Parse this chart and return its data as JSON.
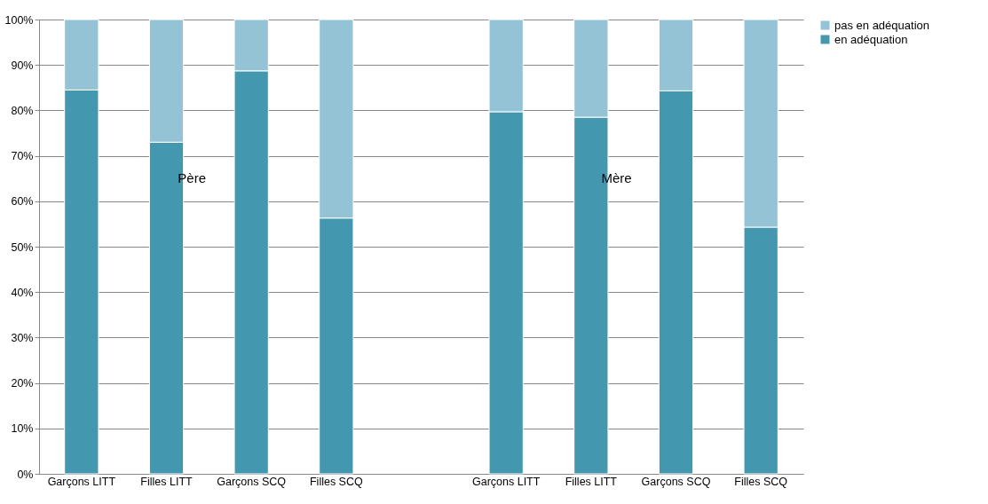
{
  "chart_data": {
    "type": "bar",
    "stacked": true,
    "categories": [
      "Garçons LITT",
      "Filles LITT",
      "Garçons SCQ",
      "Filles SCQ",
      null,
      "Garçons LITT",
      "Filles LITT",
      "Garçons SCQ",
      "Filles SCQ"
    ],
    "series": [
      {
        "name": "en adéquation",
        "color": "#4398b0",
        "values": [
          84.5,
          73,
          88.7,
          56.3,
          null,
          79.7,
          78.5,
          84.3,
          54.3
        ]
      },
      {
        "name": "pas en adéquation",
        "color": "#93c3d5",
        "values": [
          15.5,
          27,
          11.3,
          43.7,
          null,
          20.3,
          21.5,
          15.7,
          45.7
        ]
      }
    ],
    "ylim": [
      0,
      100
    ],
    "yticks": [
      {
        "value": 0,
        "label": "0%"
      },
      {
        "value": 10,
        "label": "10%"
      },
      {
        "value": 20,
        "label": "20%"
      },
      {
        "value": 30,
        "label": "30%"
      },
      {
        "value": 40,
        "label": "40%"
      },
      {
        "value": 50,
        "label": "50%"
      },
      {
        "value": 60,
        "label": "60%"
      },
      {
        "value": 70,
        "label": "70%"
      },
      {
        "value": 80,
        "label": "80%"
      },
      {
        "value": 90,
        "label": "90%"
      },
      {
        "value": 100,
        "label": "100%"
      }
    ],
    "grid": "y",
    "legend": "right",
    "annotations": [
      "Père",
      "Mère"
    ]
  }
}
